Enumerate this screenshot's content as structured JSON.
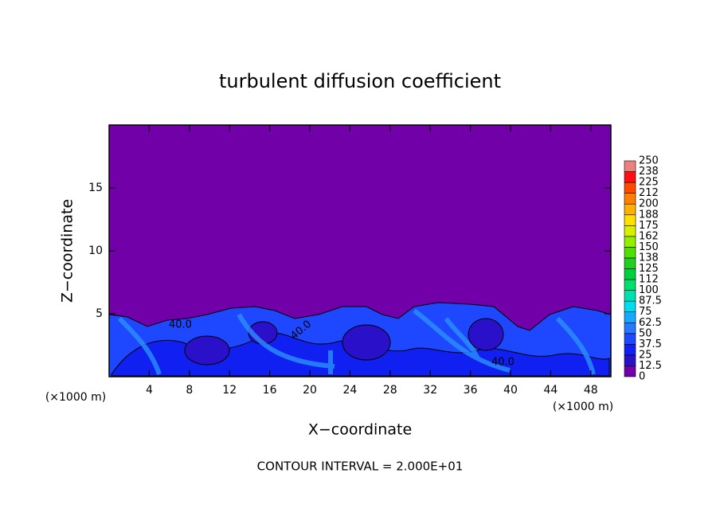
{
  "chart_data": {
    "type": "contour",
    "title": "turbulent diffusion coefficient",
    "x_label": "X−coordinate",
    "y_label": "Z−coordinate",
    "x_unit": "(×1000 m)",
    "annotation": "CONTOUR INTERVAL = 2.000E+01",
    "contour_label": "40.0",
    "xlim": [
      0,
      50
    ],
    "xticks": [
      4,
      8,
      12,
      16,
      20,
      24,
      28,
      32,
      36,
      40,
      44,
      48
    ],
    "ylim": [
      0,
      20
    ],
    "yticks": [
      5,
      10,
      15
    ],
    "colorbar": {
      "levels": [
        0,
        12.5,
        25,
        37.5,
        50,
        62.5,
        75,
        87.5,
        100,
        {
          "value": 112.5,
          "label": "112"
        },
        125,
        {
          "value": 137.5,
          "label": "138"
        },
        150,
        {
          "value": 162.5,
          "label": "162"
        },
        175,
        {
          "value": 187.5,
          "label": "188"
        },
        200,
        {
          "value": 212.5,
          "label": "212"
        },
        225,
        {
          "value": 237.5,
          "label": "238"
        },
        250
      ],
      "colors": [
        "#7200a8",
        "#2a10c8",
        "#1020f0",
        "#1e48ff",
        "#2a78ff",
        "#18a8ff",
        "#00dcf0",
        "#00e0b0",
        "#00e070",
        "#00d040",
        "#20d020",
        "#50e000",
        "#90f000",
        "#d8f000",
        "#ffe000",
        "#ffb000",
        "#ff8000",
        "#ff4a00",
        "#ff1010",
        "#f08080"
      ]
    }
  }
}
